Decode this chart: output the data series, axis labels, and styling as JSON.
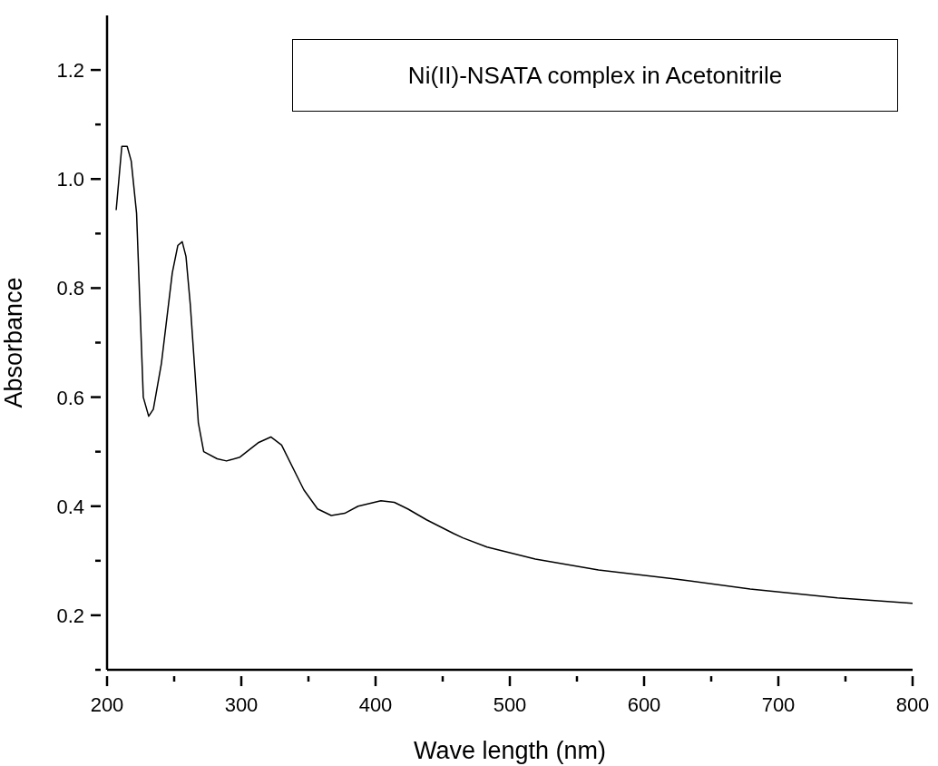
{
  "chart_data": {
    "type": "line",
    "xlabel": "Wave length (nm)",
    "ylabel": "Absorbance",
    "annotations": [
      "Ni(II)-NSATA complex in Acetonitrile"
    ],
    "x": [
      206.8,
      211,
      215,
      218,
      222,
      227,
      231,
      234.5,
      240.5,
      248.6,
      252.7,
      256,
      258.8,
      262,
      265.5,
      268,
      272,
      282,
      289,
      299,
      313,
      322,
      330,
      346.6,
      356.8,
      367,
      377,
      387,
      404,
      414,
      424,
      438,
      458,
      465,
      483,
      519,
      566,
      622,
      679,
      744,
      800
    ],
    "series": [
      {
        "color": "#000000",
        "values": [
          0.943,
          1.06,
          1.06,
          1.033,
          0.937,
          0.6,
          0.565,
          0.578,
          0.662,
          0.828,
          0.878,
          0.885,
          0.858,
          0.77,
          0.645,
          0.553,
          0.5,
          0.487,
          0.483,
          0.49,
          0.517,
          0.527,
          0.512,
          0.43,
          0.395,
          0.383,
          0.387,
          0.4,
          0.41,
          0.407,
          0.395,
          0.375,
          0.35,
          0.342,
          0.325,
          0.303,
          0.283,
          0.267,
          0.248,
          0.232,
          0.222
        ]
      }
    ],
    "xlim": [
      200,
      800
    ],
    "xticks": [
      200,
      {
        "value": 250,
        "label": null
      },
      300,
      {
        "value": 350,
        "label": null
      },
      400,
      {
        "value": 450,
        "label": null
      },
      500,
      {
        "value": 550,
        "label": null
      },
      600,
      {
        "value": 650,
        "label": null
      },
      700,
      {
        "value": 750,
        "label": null
      },
      800
    ],
    "ylim": [
      0.1,
      1.3
    ],
    "yticks": [
      {
        "value": 0.1,
        "label": null
      },
      {
        "value": 0.2,
        "label": "0.2"
      },
      {
        "value": 0.3,
        "label": null
      },
      {
        "value": 0.4,
        "label": "0.4"
      },
      {
        "value": 0.5,
        "label": null
      },
      {
        "value": 0.6,
        "label": "0.6"
      },
      {
        "value": 0.7,
        "label": null
      },
      {
        "value": 0.8,
        "label": "0.8"
      },
      {
        "value": 0.9,
        "label": null
      },
      {
        "value": 1.0,
        "label": "1.0"
      },
      {
        "value": 1.1,
        "label": null
      },
      {
        "value": 1.2,
        "label": "1.2"
      }
    ],
    "grid": false,
    "legend": false,
    "marker": "none",
    "line_style": "solid"
  }
}
